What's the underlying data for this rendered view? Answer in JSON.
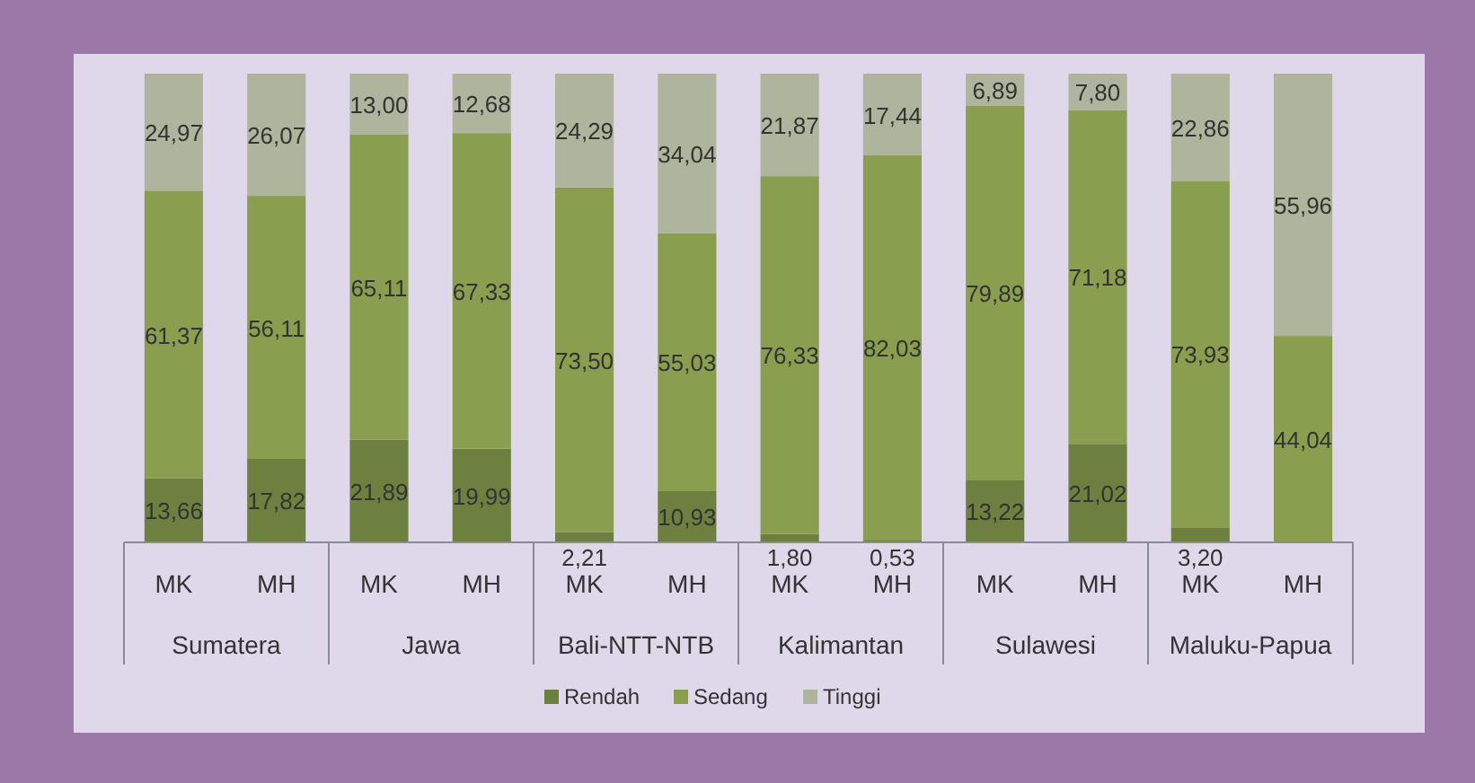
{
  "chart_data": {
    "type": "bar",
    "stacked": true,
    "categories": [
      "MK",
      "MH",
      "MK",
      "MH",
      "MK",
      "MH",
      "MK",
      "MH",
      "MK",
      "MH",
      "MK",
      "MH"
    ],
    "annotations": [
      "Sumatera",
      "Jawa",
      "Bali-NTT-NTB",
      "Kalimantan",
      "Sulawesi",
      "Maluku-Papua"
    ],
    "ylim": [
      0,
      100
    ],
    "tick_labels": "x",
    "legend": "bottom",
    "series": [
      {
        "name": "Rendah",
        "color": "#6e8040",
        "values": [
          13.66,
          17.82,
          21.89,
          19.99,
          2.21,
          10.93,
          1.8,
          0.53,
          13.22,
          21.02,
          3.2,
          0
        ],
        "value_labels": [
          "13,66",
          "17,82",
          "21,89",
          "19,99",
          "2,21",
          "10,93",
          "1,80",
          "0,53",
          "13,22",
          "21,02",
          "3,20",
          null
        ]
      },
      {
        "name": "Sedang",
        "color": "#8a9e50",
        "values": [
          61.37,
          56.11,
          65.11,
          67.33,
          73.5,
          55.03,
          76.33,
          82.03,
          79.89,
          71.18,
          73.93,
          44.04
        ],
        "value_labels": [
          "61,37",
          "56,11",
          "65,11",
          "67,33",
          "73,50",
          "55,03",
          "76,33",
          "82,03",
          "79,89",
          "71,18",
          "73,93",
          "44,04"
        ]
      },
      {
        "name": "Tinggi",
        "color": "#aeb59c",
        "values": [
          24.97,
          26.07,
          13.0,
          12.68,
          24.29,
          34.04,
          21.87,
          17.44,
          6.89,
          7.8,
          22.86,
          55.96
        ],
        "value_labels": [
          "24,97",
          "26,07",
          "13,00",
          "12,68",
          "24,29",
          "34,04",
          "21,87",
          "17,44",
          "6,89",
          "7,80",
          "22,86",
          "55,96"
        ]
      }
    ]
  }
}
